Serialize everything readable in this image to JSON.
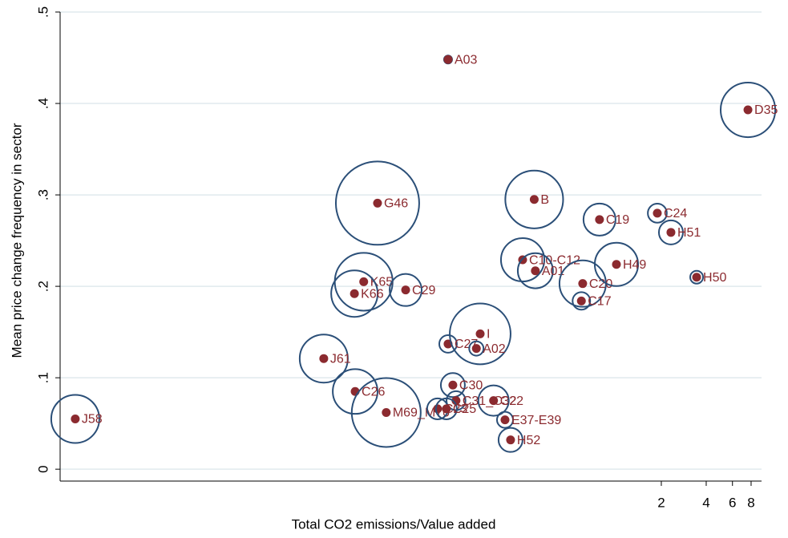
{
  "chart_data": {
    "type": "scatter",
    "x_label": "Total CO2 emissions/Value added",
    "y_label": "Mean price change frequency in sector",
    "x_scale": "log",
    "xlim": [
      0.000186,
      9.4
    ],
    "ylim": [
      -0.013,
      0.5
    ],
    "xticks": [
      2,
      4,
      6,
      8
    ],
    "yticks": [
      {
        "value": 0,
        "label": "0"
      },
      {
        "value": 0.1,
        "label": ".1"
      },
      {
        "value": 0.2,
        "label": ".2"
      },
      {
        "value": 0.3,
        "label": ".3"
      },
      {
        "value": 0.4,
        "label": ".4"
      },
      {
        "value": 0.5,
        "label": ".5"
      }
    ],
    "grid": true,
    "point_color": "#8b2a2f",
    "bubble_color": "#2b4f78",
    "labels": [
      "J58",
      "J61",
      "C26",
      "M69_M70",
      "G46",
      "K65",
      "K66",
      "C29",
      "A03",
      "C27",
      "I",
      "A02",
      "C30",
      "C31_C32",
      "C22",
      "C23",
      "C25",
      "E37-E39",
      "H52",
      "C10-C12",
      "A01",
      "B",
      "C19",
      "C20",
      "C17",
      "H49",
      "C24",
      "H51",
      "H50",
      "D35"
    ],
    "x": [
      0.000235,
      0.0109,
      0.0177,
      0.0286,
      0.025,
      0.0202,
      0.0175,
      0.0386,
      0.0743,
      0.0743,
      0.122,
      0.115,
      0.08,
      0.084,
      0.15,
      0.0632,
      0.0724,
      0.179,
      0.195,
      0.235,
      0.286,
      0.281,
      0.77,
      0.594,
      0.582,
      1.0,
      1.88,
      2.32,
      3.45,
      7.62
    ],
    "y": [
      0.055,
      0.121,
      0.085,
      0.062,
      0.291,
      0.205,
      0.192,
      0.196,
      0.448,
      0.137,
      0.148,
      0.132,
      0.092,
      0.075,
      0.075,
      0.066,
      0.066,
      0.054,
      0.032,
      0.229,
      0.217,
      0.295,
      0.273,
      0.203,
      0.184,
      0.224,
      0.28,
      0.259,
      0.21,
      0.393
    ],
    "sizes": [
      9,
      9,
      7.8,
      18.5,
      27,
      13,
      8.4,
      4,
      0.25,
      1.2,
      14.4,
      0.8,
      2.25,
      1.4,
      3.6,
      1.7,
      1.7,
      1,
      2.25,
      7.3,
      4.8,
      13,
      4,
      8.4,
      1.2,
      7.3,
      1.4,
      2.25,
      0.64,
      11.6
    ]
  }
}
